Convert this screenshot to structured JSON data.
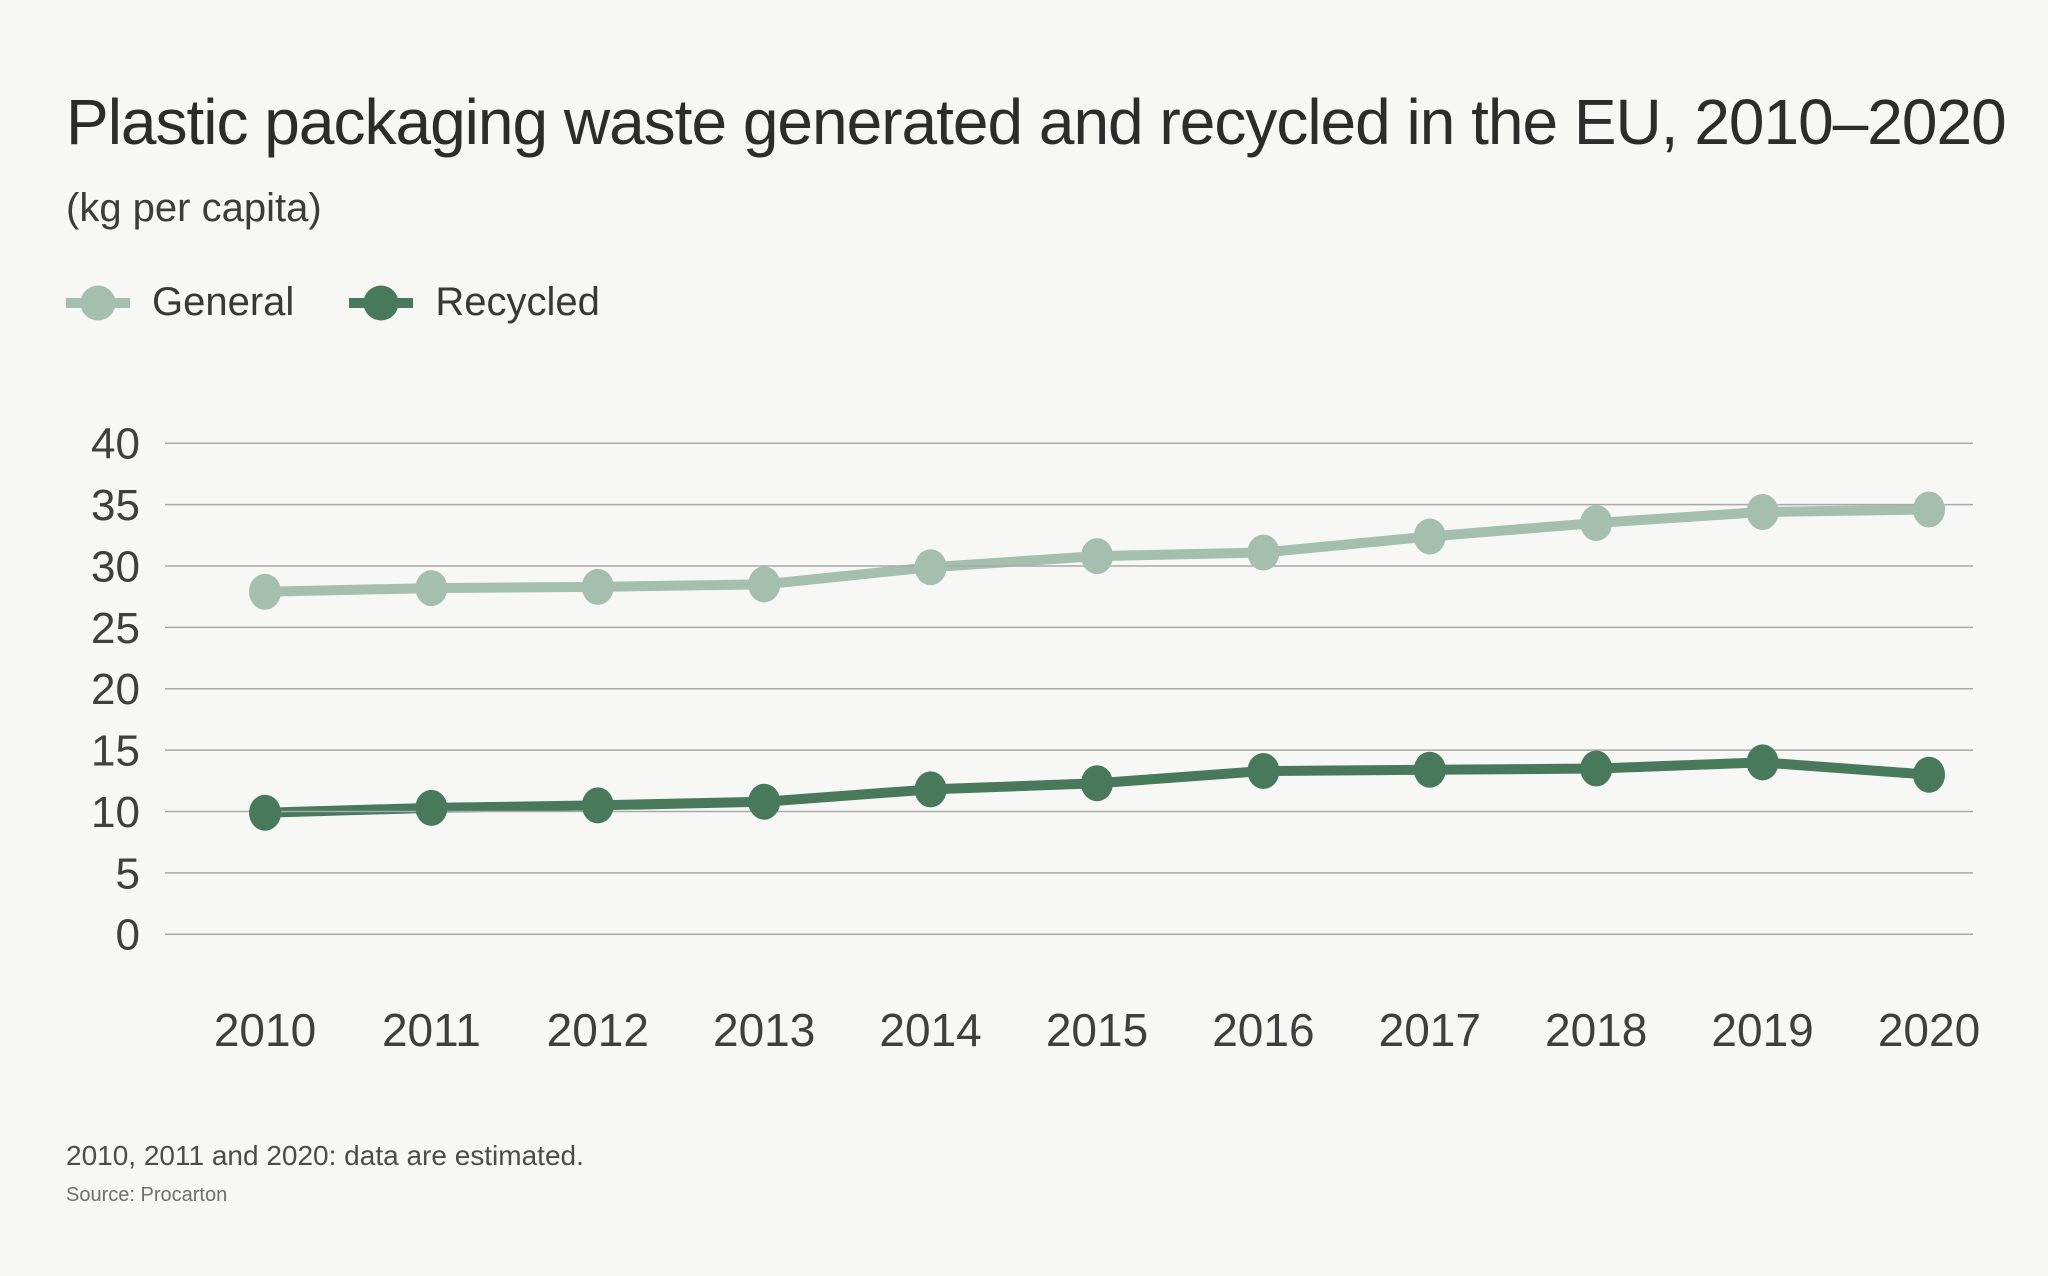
{
  "header": {
    "title": "Plastic packaging waste generated and recycled in the EU, 2010–2020",
    "subtitle": "(kg per capita)"
  },
  "legend": {
    "items": [
      {
        "label": "General",
        "color": "#a5bfae"
      },
      {
        "label": "Recycled",
        "color": "#48795a"
      }
    ]
  },
  "chart_data": {
    "type": "line",
    "title": "Plastic packaging waste generated and recycled in the EU, 2010–2020",
    "subtitle": "(kg per capita)",
    "x": [
      2010,
      2011,
      2012,
      2013,
      2014,
      2015,
      2016,
      2017,
      2018,
      2019,
      2020
    ],
    "series": [
      {
        "name": "General",
        "color": "#a5bfae",
        "values": [
          27.9,
          28.2,
          28.3,
          28.5,
          29.9,
          30.8,
          31.1,
          32.4,
          33.5,
          34.4,
          34.6
        ]
      },
      {
        "name": "Recycled",
        "color": "#48795a",
        "values": [
          9.9,
          10.3,
          10.5,
          10.8,
          11.8,
          12.3,
          13.3,
          13.4,
          13.5,
          14.0,
          13.0
        ]
      }
    ],
    "xlabel": "",
    "ylabel": "(kg per capita)",
    "ylim": [
      0,
      40
    ],
    "y_ticks": [
      40,
      35,
      30,
      25,
      20,
      15,
      10,
      5,
      0
    ],
    "grid": true,
    "legend_position": "top-left"
  },
  "footnotes": {
    "note": "2010, 2011 and 2020: data are estimated.",
    "source": "Source: Procarton"
  },
  "colors": {
    "background": "#f7f7f5",
    "gridline": "#a9a9a9",
    "axis_text": "#3f3f3f"
  }
}
